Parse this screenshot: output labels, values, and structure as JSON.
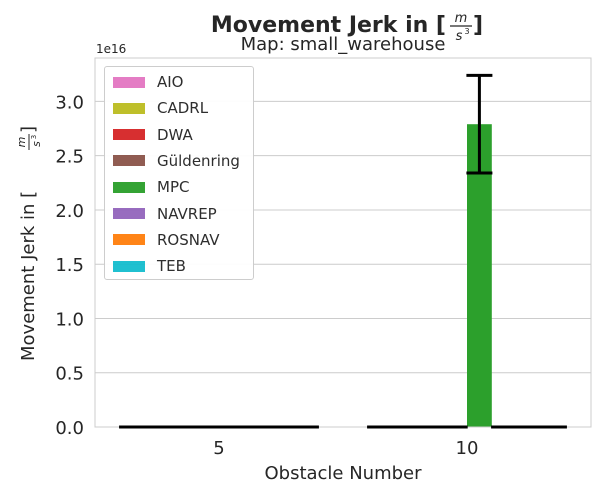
{
  "chart_data": {
    "type": "bar",
    "title": "Movement Jerk in [$\\frac{m}{s^3}$]",
    "title_main": "Movement Jerk in [",
    "title_close": "]",
    "subtitle": "Map: small_warehouse",
    "xlabel": "Obstacle Number",
    "ylabel_main": "Movement Jerk in [",
    "ylabel_close": "]",
    "unit_num": "m",
    "unit_den": "s",
    "unit_exp": "3",
    "offset_text": "1e16",
    "categories": [
      "5",
      "10"
    ],
    "ylim": [
      0,
      3.4e+16
    ],
    "yticks": [
      0,
      5000000000000000.0,
      1e+16,
      1.5e+16,
      2e+16,
      2.5e+16,
      3e+16
    ],
    "ytick_labels": [
      "0.0",
      "0.5",
      "1.0",
      "1.5",
      "2.0",
      "2.5",
      "3.0"
    ],
    "grid": true,
    "legend_position": "upper-left",
    "series": [
      {
        "name": "AIO",
        "color": "#e377c2",
        "values": [
          0,
          0
        ],
        "error": [
          0,
          0
        ]
      },
      {
        "name": "CADRL",
        "color": "#bcbd22",
        "values": [
          0,
          0
        ],
        "error": [
          0,
          0
        ]
      },
      {
        "name": "DWA",
        "color": "#d62728",
        "values": [
          0,
          0
        ],
        "error": [
          0,
          0
        ]
      },
      {
        "name": "Güldenring",
        "color": "#8c564b",
        "values": [
          0,
          0
        ],
        "error": [
          0,
          0
        ]
      },
      {
        "name": "MPC",
        "color": "#2ca02c",
        "values": [
          0,
          2.79e+16
        ],
        "error": [
          0,
          4500000000000000.0
        ]
      },
      {
        "name": "NAVREP",
        "color": "#9467bd",
        "values": [
          0,
          0
        ],
        "error": [
          0,
          0
        ]
      },
      {
        "name": "ROSNAV",
        "color": "#ff7f0e",
        "values": [
          0,
          0
        ],
        "error": [
          0,
          0
        ]
      },
      {
        "name": "TEB",
        "color": "#17becf",
        "values": [
          0,
          0
        ],
        "error": [
          0,
          0
        ]
      }
    ]
  }
}
